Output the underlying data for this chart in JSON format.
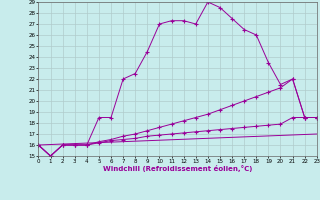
{
  "xlabel": "Windchill (Refroidissement éolien,°C)",
  "xlim": [
    0,
    23
  ],
  "ylim": [
    15,
    29
  ],
  "yticks": [
    15,
    16,
    17,
    18,
    19,
    20,
    21,
    22,
    23,
    24,
    25,
    26,
    27,
    28,
    29
  ],
  "xticks": [
    0,
    1,
    2,
    3,
    4,
    5,
    6,
    7,
    8,
    9,
    10,
    11,
    12,
    13,
    14,
    15,
    16,
    17,
    18,
    19,
    20,
    21,
    22,
    23
  ],
  "background_color": "#c8ecec",
  "line_color": "#990099",
  "grid_color": "#b0cccc",
  "lines": [
    {
      "x": [
        0,
        1,
        2,
        3,
        4,
        5,
        6,
        7,
        8,
        9,
        10,
        11,
        12,
        13,
        14,
        15,
        16,
        17,
        18,
        19,
        20,
        21,
        22,
        23
      ],
      "y": [
        16,
        15,
        16,
        16,
        16,
        18.5,
        18.5,
        22,
        22.5,
        24.5,
        27,
        27.3,
        27.3,
        27,
        29,
        28.5,
        27.5,
        26.5,
        26,
        23.5,
        21.5,
        22,
        18.5,
        18.5
      ],
      "marker": true
    },
    {
      "x": [
        0,
        1,
        2,
        3,
        4,
        5,
        6,
        7,
        8,
        9,
        10,
        11,
        12,
        13,
        14,
        15,
        16,
        17,
        18,
        19,
        20,
        21,
        22,
        23
      ],
      "y": [
        16,
        15,
        16,
        16,
        16,
        16.3,
        16.5,
        16.8,
        17.0,
        17.3,
        17.6,
        17.9,
        18.2,
        18.5,
        18.8,
        19.2,
        19.6,
        20.0,
        20.4,
        20.8,
        21.2,
        22,
        18.5,
        18.5
      ],
      "marker": true
    },
    {
      "x": [
        0,
        1,
        2,
        3,
        4,
        5,
        6,
        7,
        8,
        9,
        10,
        11,
        12,
        13,
        14,
        15,
        16,
        17,
        18,
        19,
        20,
        21,
        22,
        23
      ],
      "y": [
        16,
        15,
        16,
        16,
        16,
        16.2,
        16.4,
        16.5,
        16.6,
        16.8,
        16.9,
        17.0,
        17.1,
        17.2,
        17.3,
        17.4,
        17.5,
        17.6,
        17.7,
        17.8,
        17.9,
        18.5,
        18.5,
        18.5
      ],
      "marker": true
    },
    {
      "x": [
        0,
        23
      ],
      "y": [
        16,
        17
      ],
      "marker": false
    }
  ]
}
